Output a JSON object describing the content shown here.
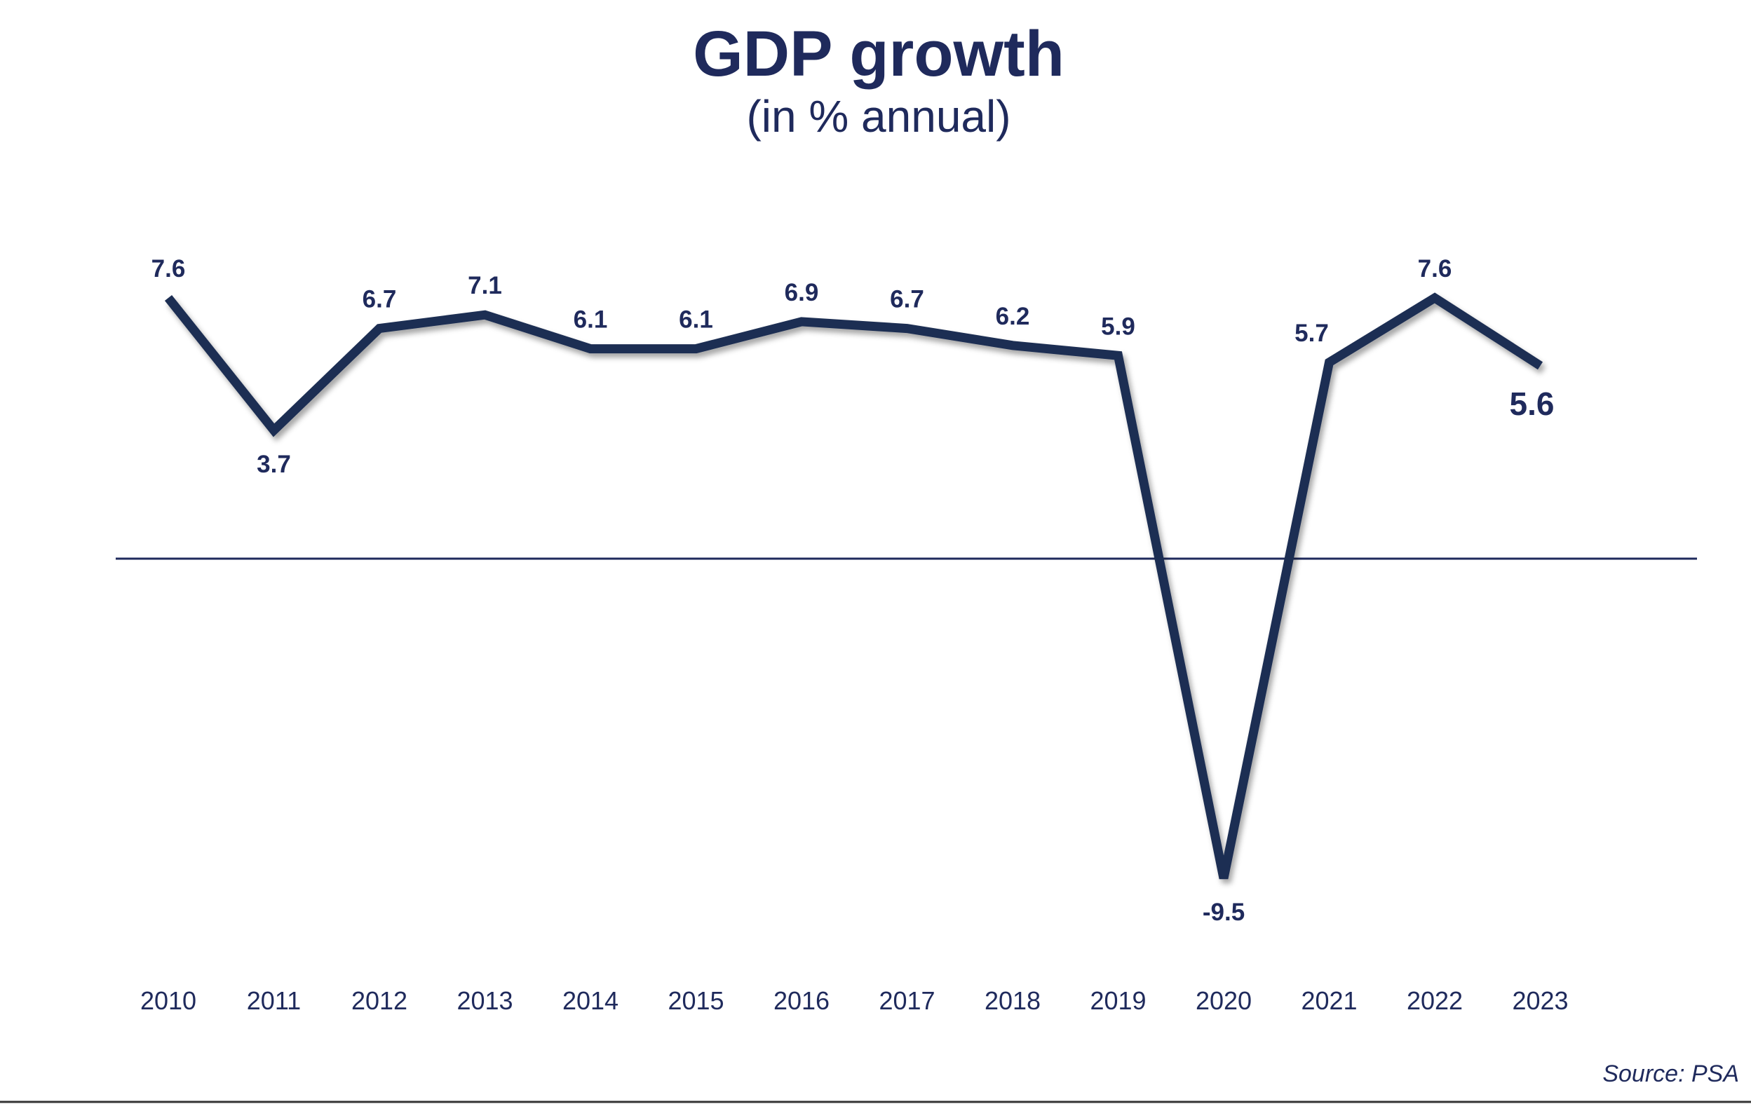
{
  "chart_data": {
    "type": "line",
    "title": "GDP growth",
    "subtitle": "(in % annual)",
    "xlabel": "",
    "ylabel": "",
    "categories": [
      "2010",
      "2011",
      "2012",
      "2013",
      "2014",
      "2015",
      "2016",
      "2017",
      "2018",
      "2019",
      "2020",
      "2021",
      "2022",
      "2023"
    ],
    "series": [
      {
        "name": "GDP growth",
        "values": [
          7.6,
          3.7,
          6.7,
          7.1,
          6.1,
          6.1,
          6.9,
          6.7,
          6.2,
          5.9,
          -9.5,
          5.7,
          7.6,
          5.6
        ],
        "labels": [
          "7.6",
          "3.7",
          "6.7",
          "7.1",
          "6.1",
          "6.1",
          "6.9",
          "6.7",
          "6.2",
          "5.9",
          "-9.5",
          "5.7",
          "7.6",
          "5.6"
        ],
        "color": "#1f2f52"
      }
    ],
    "ylim": [
      -9.5,
      7.6
    ],
    "zero_line": true,
    "grid": false,
    "legend": "none",
    "source": "Source: PSA"
  },
  "colors": {
    "text": "#1f2a5c",
    "line": "#1f2f52",
    "background": "#ffffff"
  }
}
